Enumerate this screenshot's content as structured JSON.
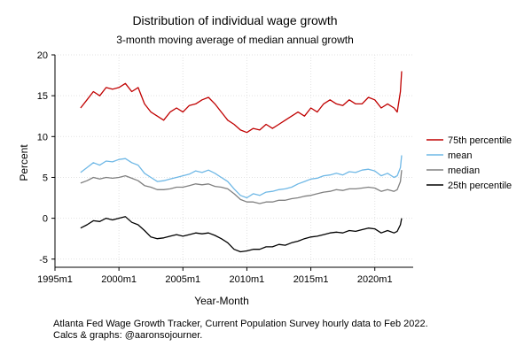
{
  "chart_data": {
    "type": "line",
    "title": "Distribution of individual wage growth",
    "subtitle": "3-month moving average of median annual growth",
    "xlabel": "Year-Month",
    "ylabel": "Percent",
    "xlim": [
      1995.0,
      2023.0
    ],
    "ylim": [
      -6.0,
      20.0
    ],
    "grid": true,
    "legend_position": "right",
    "x_ticks": [
      {
        "value": 1995.0,
        "label": "1995m1"
      },
      {
        "value": 2000.0,
        "label": "2000m1"
      },
      {
        "value": 2005.0,
        "label": "2005m1"
      },
      {
        "value": 2010.0,
        "label": "2010m1"
      },
      {
        "value": 2015.0,
        "label": "2015m1"
      },
      {
        "value": 2020.0,
        "label": "2020m1"
      }
    ],
    "y_ticks": [
      {
        "value": -5,
        "label": "-5"
      },
      {
        "value": 0,
        "label": "0"
      },
      {
        "value": 5,
        "label": "5"
      },
      {
        "value": 10,
        "label": "10"
      },
      {
        "value": 15,
        "label": "15"
      },
      {
        "value": 20,
        "label": "20"
      }
    ],
    "x": [
      1997.0,
      1997.5,
      1998.0,
      1998.5,
      1999.0,
      1999.5,
      2000.0,
      2000.5,
      2001.0,
      2001.5,
      2002.0,
      2002.5,
      2003.0,
      2003.5,
      2004.0,
      2004.5,
      2005.0,
      2005.5,
      2006.0,
      2006.5,
      2007.0,
      2007.5,
      2008.0,
      2008.5,
      2009.0,
      2009.5,
      2010.0,
      2010.5,
      2011.0,
      2011.5,
      2012.0,
      2012.5,
      2013.0,
      2013.5,
      2014.0,
      2014.5,
      2015.0,
      2015.5,
      2016.0,
      2016.5,
      2017.0,
      2017.5,
      2018.0,
      2018.5,
      2019.0,
      2019.5,
      2020.0,
      2020.5,
      2021.0,
      2021.5,
      2021.75,
      2022.0,
      2022.1
    ],
    "series": [
      {
        "name": "75th percentile",
        "color": "#c00000",
        "values": [
          13.5,
          14.5,
          15.5,
          15.0,
          16.0,
          15.8,
          16.0,
          16.5,
          15.5,
          16.0,
          14.0,
          13.0,
          12.5,
          12.0,
          13.0,
          13.5,
          13.0,
          13.8,
          14.0,
          14.5,
          14.8,
          14.0,
          13.0,
          12.0,
          11.5,
          10.8,
          10.5,
          11.0,
          10.8,
          11.5,
          11.0,
          11.5,
          12.0,
          12.5,
          13.0,
          12.5,
          13.5,
          13.0,
          14.0,
          14.5,
          14.0,
          13.8,
          14.5,
          14.0,
          14.0,
          14.8,
          14.5,
          13.5,
          14.0,
          13.5,
          13.0,
          15.5,
          18.0
        ]
      },
      {
        "name": "mean",
        "color": "#6fb8e6",
        "values": [
          5.6,
          6.2,
          6.8,
          6.5,
          7.0,
          6.9,
          7.2,
          7.3,
          6.8,
          6.5,
          5.5,
          5.0,
          4.5,
          4.6,
          4.8,
          5.0,
          5.2,
          5.4,
          5.8,
          5.6,
          5.9,
          5.5,
          5.0,
          4.5,
          3.6,
          2.8,
          2.5,
          3.0,
          2.8,
          3.2,
          3.3,
          3.5,
          3.6,
          3.8,
          4.2,
          4.5,
          4.8,
          4.9,
          5.2,
          5.3,
          5.5,
          5.3,
          5.7,
          5.6,
          5.9,
          6.0,
          5.8,
          5.2,
          5.5,
          5.0,
          5.2,
          6.2,
          7.7
        ]
      },
      {
        "name": "median",
        "color": "#808080",
        "values": [
          4.3,
          4.6,
          5.0,
          4.8,
          5.0,
          4.9,
          5.0,
          5.2,
          4.9,
          4.6,
          4.0,
          3.8,
          3.5,
          3.5,
          3.6,
          3.8,
          3.8,
          4.0,
          4.2,
          4.1,
          4.2,
          3.9,
          3.8,
          3.6,
          3.0,
          2.3,
          2.0,
          2.0,
          1.8,
          2.0,
          2.0,
          2.2,
          2.2,
          2.4,
          2.5,
          2.7,
          2.8,
          3.0,
          3.2,
          3.3,
          3.5,
          3.4,
          3.6,
          3.6,
          3.7,
          3.8,
          3.7,
          3.3,
          3.5,
          3.3,
          3.5,
          4.5,
          5.9
        ]
      },
      {
        "name": "25th percentile",
        "color": "#000000",
        "values": [
          -1.2,
          -0.8,
          -0.3,
          -0.4,
          0.0,
          -0.2,
          0.0,
          0.2,
          -0.5,
          -0.8,
          -1.5,
          -2.3,
          -2.5,
          -2.4,
          -2.2,
          -2.0,
          -2.2,
          -2.0,
          -1.8,
          -1.9,
          -1.8,
          -2.1,
          -2.5,
          -3.0,
          -3.8,
          -4.1,
          -4.0,
          -3.8,
          -3.8,
          -3.5,
          -3.5,
          -3.2,
          -3.3,
          -3.0,
          -2.8,
          -2.5,
          -2.3,
          -2.2,
          -2.0,
          -1.8,
          -1.7,
          -1.8,
          -1.5,
          -1.6,
          -1.4,
          -1.2,
          -1.3,
          -1.8,
          -1.5,
          -1.8,
          -1.6,
          -0.8,
          0.0
        ]
      }
    ],
    "note_lines": [
      "Atlanta Fed Wage Growth Tracker, Current Population Survey hourly data to Feb 2022.",
      "Calcs & graphs: @aaronsojourner."
    ]
  }
}
